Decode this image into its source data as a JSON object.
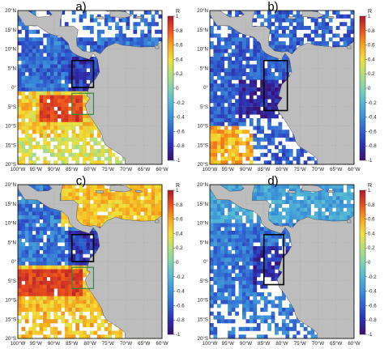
{
  "panels": [
    {
      "letter": "a)",
      "field": "a",
      "boxes": [
        "black",
        "green"
      ]
    },
    {
      "letter": "b)",
      "field": "b",
      "boxes": [
        "black"
      ]
    },
    {
      "letter": "c)",
      "field": "c",
      "boxes": [
        "black",
        "green"
      ]
    },
    {
      "letter": "d)",
      "field": "d",
      "boxes": [
        "black"
      ]
    }
  ],
  "lat_ticks": [
    "20°N",
    "15°N",
    "10°N",
    "5°N",
    "0°",
    "5°S",
    "10°S",
    "15°S",
    "20°S"
  ],
  "lon_ticks": [
    "100°W",
    "95°W",
    "90°W",
    "85°W",
    "80°W",
    "75°W",
    "70°W",
    "65°W",
    "60°W"
  ],
  "colorbar": {
    "title": "R",
    "ticks": [
      "1",
      "0.8",
      "0.6",
      "0.4",
      "0.2",
      "0",
      "-0.2",
      "-0.4",
      "-0.6",
      "-0.8",
      "-1"
    ]
  },
  "colors": {
    "land": "#bdbdbd",
    "box_black": "#000000",
    "box_green": "#2e8b3a",
    "colormap": [
      "#3b0f70",
      "#2c2fb0",
      "#2f5fd0",
      "#3b8fd8",
      "#52b7d6",
      "#7fd3b0",
      "#b3df7a",
      "#f2e035",
      "#f7a51d",
      "#ea4f1d",
      "#b1182b"
    ]
  }
}
